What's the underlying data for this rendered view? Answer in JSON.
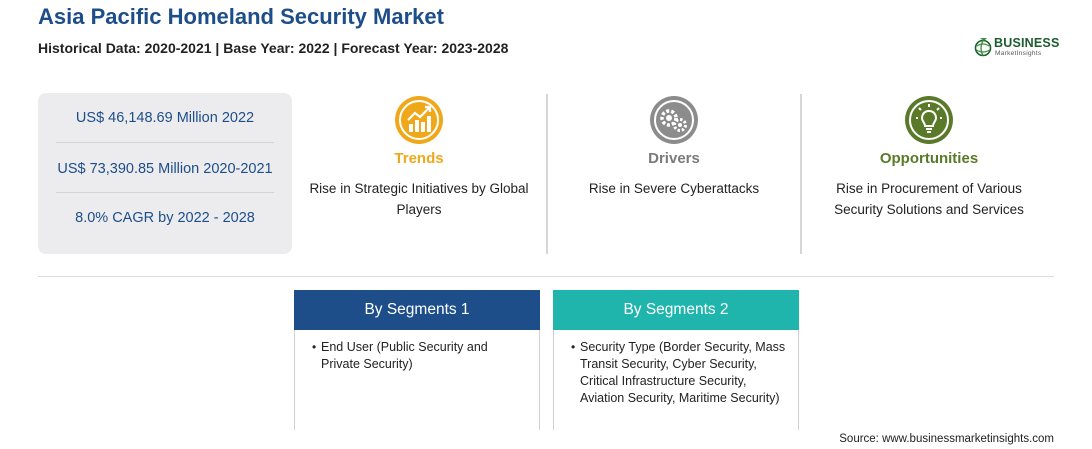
{
  "header": {
    "title": "Asia Pacific Homeland Security Market",
    "subtitle": "Historical Data: 2020-2021 | Base Year: 2022 | Forecast Year: 2023-2028"
  },
  "logo": {
    "brand": "BUSINESS",
    "tagline": "MarketInsights",
    "icon": "globe-icon",
    "color": "#1d5c2e"
  },
  "stats": [
    "US$ 46,148.69 Million 2022",
    "US$ 73,390.85 Million 2020-2021",
    "8.0% CAGR by 2022 - 2028"
  ],
  "columns": [
    {
      "heading": "Trends",
      "description": "Rise in Strategic Initiatives by Global Players",
      "icon": "growth-chart-icon",
      "color": "#f0a81b"
    },
    {
      "heading": "Drivers",
      "description": "Rise in Severe Cyberattacks",
      "icon": "gears-icon",
      "color": "#7a7a7a"
    },
    {
      "heading": "Opportunities",
      "description": "Rise in Procurement of Various Security Solutions and Services",
      "icon": "lightbulb-icon",
      "color": "#5a7a2a"
    }
  ],
  "segments": [
    {
      "heading": "By Segments 1",
      "bullet": "End User (Public Security and Private Security)",
      "color": "#1d4e89"
    },
    {
      "heading": "By Segments 2",
      "bullet": "Security Type (Border Security, Mass Transit Security, Cyber Security, Critical Infrastructure Security, Aviation Security, Maritime Security)",
      "color": "#1fb5ac"
    }
  ],
  "source": "Source: www.businessmarketinsights.com"
}
